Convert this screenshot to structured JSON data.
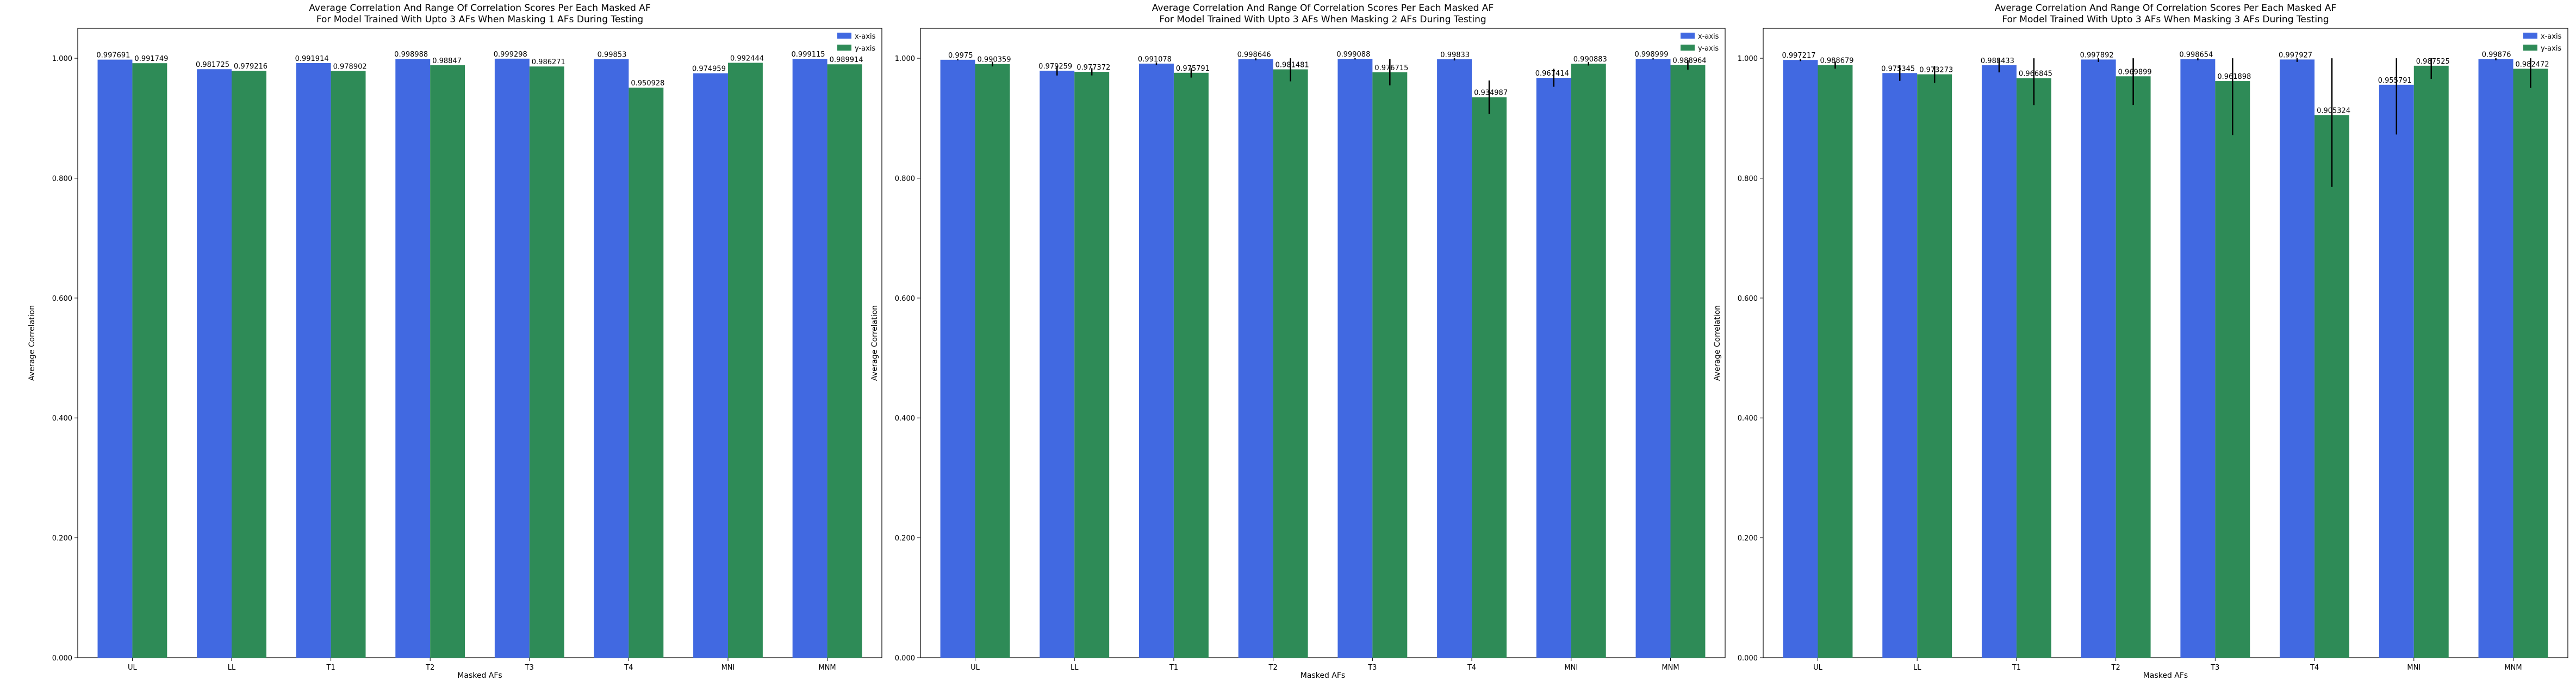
{
  "colors": {
    "x_axis": "#4169E1",
    "y_axis": "#2E8B57",
    "error_bar": "#000000"
  },
  "chart_data": [
    {
      "type": "bar",
      "title": "Average Correlation And Range Of Correlation Scores Per Each Masked AF",
      "subtitle": "For Model Trained With Upto 3 AFs When Masking 1 AFs During Testing",
      "xlabel": "Masked AFs",
      "ylabel": "Average Correlation",
      "ylim": [
        0,
        1.05
      ],
      "yticks": [
        "0.000",
        "0.200",
        "0.400",
        "0.600",
        "0.800",
        "1.000"
      ],
      "categories": [
        "UL",
        "LL",
        "T1",
        "T2",
        "T3",
        "T4",
        "MNI",
        "MNM"
      ],
      "legend_position": "top-right",
      "series": [
        {
          "name": "x-axis",
          "values": [
            0.997691,
            0.981725,
            0.991914,
            0.998988,
            0.999298,
            0.99853,
            0.974959,
            0.999115
          ],
          "labels": [
            "0.997691",
            "0.981725",
            "0.991914",
            "0.998988",
            "0.999298",
            "0.99853",
            "0.974959",
            "0.999115"
          ],
          "err": [
            0,
            0,
            0,
            0,
            0,
            0,
            0,
            0
          ]
        },
        {
          "name": "y-axis",
          "values": [
            0.991749,
            0.979216,
            0.978902,
            0.98847,
            0.986271,
            0.950928,
            0.992444,
            0.989914
          ],
          "labels": [
            "0.991749",
            "0.979216",
            "0.978902",
            "0.98847",
            "0.986271",
            "0.950928",
            "0.992444",
            "0.989914"
          ],
          "err": [
            0,
            0,
            0,
            0,
            0,
            0,
            0,
            0
          ]
        }
      ]
    },
    {
      "type": "bar",
      "title": "Average Correlation And Range Of Correlation Scores Per Each Masked AF",
      "subtitle": "For Model Trained With Upto 3 AFs When Masking 2 AFs During Testing",
      "xlabel": "Masked AFs",
      "ylabel": "Average Correlation",
      "ylim": [
        0,
        1.05
      ],
      "yticks": [
        "0.000",
        "0.200",
        "0.400",
        "0.600",
        "0.800",
        "1.000"
      ],
      "categories": [
        "UL",
        "LL",
        "T1",
        "T2",
        "T3",
        "T4",
        "MNI",
        "MNM"
      ],
      "legend_position": "top-right",
      "series": [
        {
          "name": "x-axis",
          "values": [
            0.9975,
            0.979259,
            0.991078,
            0.998646,
            0.999088,
            0.99833,
            0.967414,
            0.998999
          ],
          "labels": [
            "0.9975",
            "0.979259",
            "0.991078",
            "0.998646",
            "0.999088",
            "0.99833",
            "0.967414",
            "0.998999"
          ],
          "err": [
            0.001,
            0.008,
            0.002,
            0.002,
            0.001,
            0.002,
            0.015,
            0.001
          ]
        },
        {
          "name": "y-axis",
          "values": [
            0.990359,
            0.977372,
            0.975791,
            0.981481,
            0.976715,
            0.934987,
            0.990883,
            0.988964
          ],
          "labels": [
            "0.990359",
            "0.977372",
            "0.975791",
            "0.981481",
            "0.976715",
            "0.934987",
            "0.990883",
            "0.988964"
          ],
          "err": [
            0.004,
            0.006,
            0.008,
            0.02,
            0.022,
            0.028,
            0.003,
            0.008
          ]
        }
      ]
    },
    {
      "type": "bar",
      "title": "Average Correlation And Range Of Correlation Scores Per Each Masked AF",
      "subtitle": "For Model Trained With Upto 3 AFs When Masking 3 AFs During Testing",
      "xlabel": "Masked AFs",
      "ylabel": "Average Correlation",
      "ylim": [
        0,
        1.05
      ],
      "yticks": [
        "0.000",
        "0.200",
        "0.400",
        "0.600",
        "0.800",
        "1.000"
      ],
      "categories": [
        "UL",
        "LL",
        "T1",
        "T2",
        "T3",
        "T4",
        "MNI",
        "MNM"
      ],
      "legend_position": "top-right",
      "series": [
        {
          "name": "x-axis",
          "values": [
            0.997217,
            0.975345,
            0.988433,
            0.997892,
            0.998654,
            0.997927,
            0.955791,
            0.99876
          ],
          "labels": [
            "0.997217",
            "0.975345",
            "0.988433",
            "0.997892",
            "0.998654",
            "0.997927",
            "0.955791",
            "0.99876"
          ],
          "err": [
            0.002,
            0.013,
            0.012,
            0.004,
            0.002,
            0.004,
            0.083,
            0.002
          ]
        },
        {
          "name": "y-axis",
          "values": [
            0.988679,
            0.973273,
            0.966845,
            0.969899,
            0.961898,
            0.905324,
            0.987525,
            0.982472
          ],
          "labels": [
            "0.988679",
            "0.973273",
            "0.966845",
            "0.969899",
            "0.961898",
            "0.905324",
            "0.987525",
            "0.982472"
          ],
          "err": [
            0.006,
            0.014,
            0.045,
            0.048,
            0.09,
            0.12,
            0.022,
            0.032
          ]
        }
      ]
    }
  ]
}
